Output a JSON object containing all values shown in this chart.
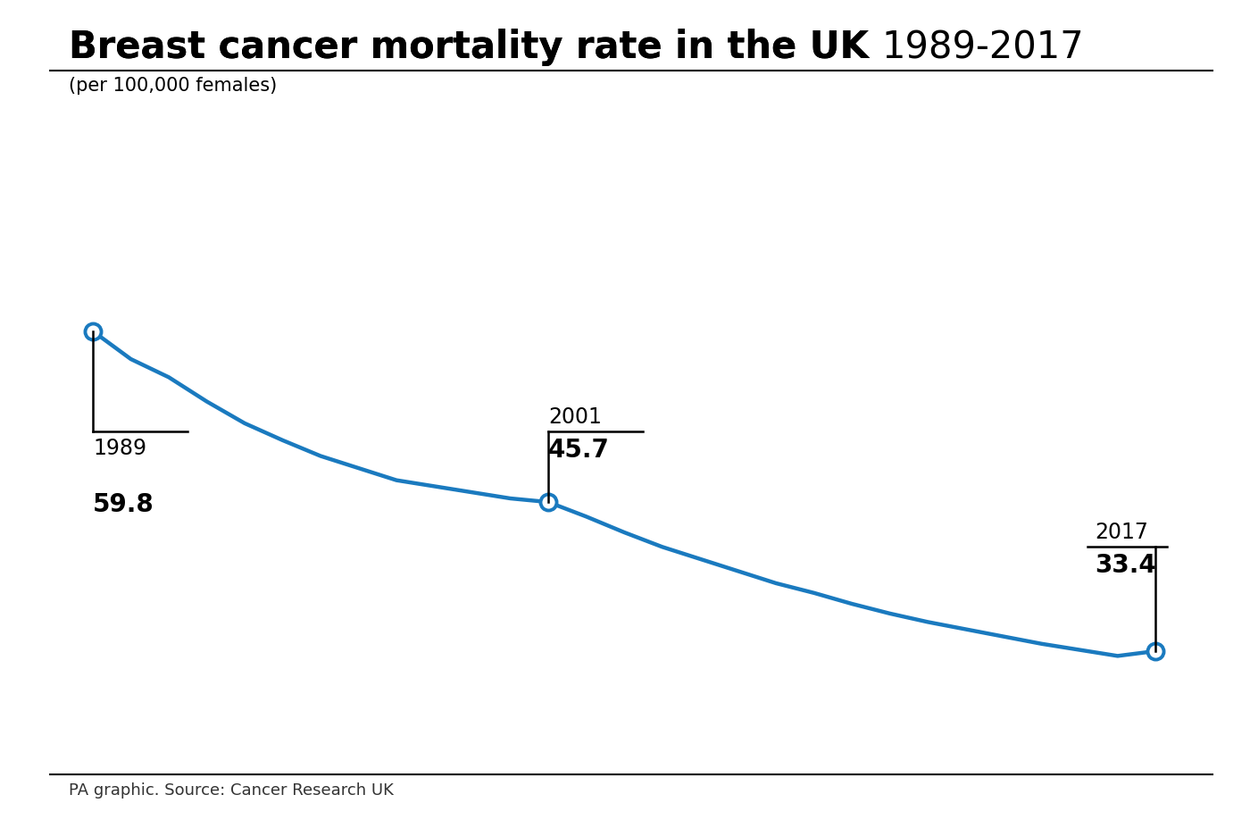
{
  "title_bold": "Breast cancer mortality rate in the UK ",
  "title_regular": "1989-2017",
  "subtitle": "(per 100,000 females)",
  "source": "PA graphic. Source: Cancer Research UK",
  "line_color": "#1a7abf",
  "background_color": "#ffffff",
  "years": [
    1989,
    1990,
    1991,
    1992,
    1993,
    1994,
    1995,
    1996,
    1997,
    1998,
    1999,
    2000,
    2001,
    2002,
    2003,
    2004,
    2005,
    2006,
    2007,
    2008,
    2009,
    2010,
    2011,
    2012,
    2013,
    2014,
    2015,
    2016,
    2017
  ],
  "values": [
    59.8,
    57.5,
    56.0,
    54.0,
    52.2,
    50.8,
    49.5,
    48.5,
    47.5,
    47.0,
    46.5,
    46.0,
    45.7,
    44.5,
    43.2,
    42.0,
    41.0,
    40.0,
    39.0,
    38.2,
    37.3,
    36.5,
    35.8,
    35.2,
    34.6,
    34.0,
    33.5,
    33.0,
    33.4
  ],
  "annotated_years": [
    1989,
    2001,
    2017
  ],
  "annotated_values": [
    59.8,
    45.7,
    33.4
  ],
  "xlim": [
    1988.2,
    2018.5
  ],
  "ylim": [
    27,
    68
  ],
  "title_fontsize": 30,
  "subtitle_fontsize": 15,
  "source_fontsize": 13,
  "annotation_year_fontsize": 17,
  "annotation_value_fontsize": 20
}
